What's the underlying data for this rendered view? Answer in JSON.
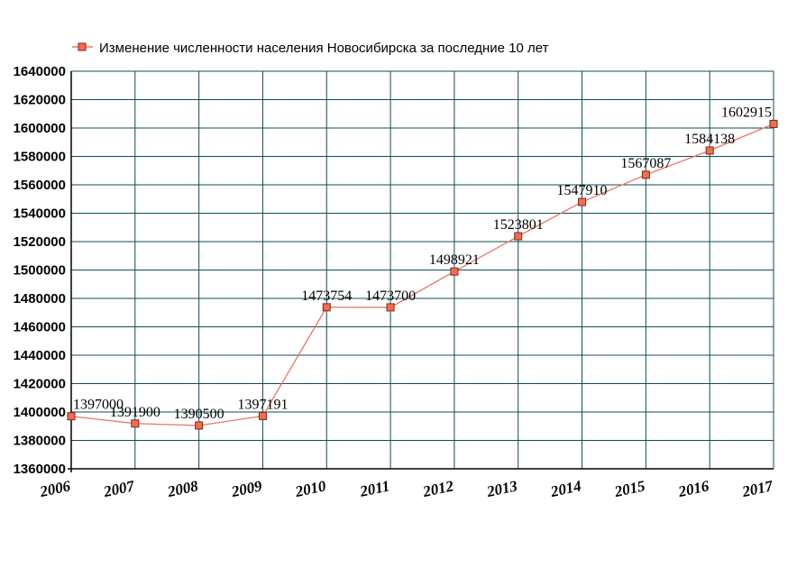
{
  "chart_data": {
    "type": "line",
    "legend": {
      "label": "Изменение численности населения Новосибирска за последние 10 лет",
      "placement": "top-left"
    },
    "categories": [
      "2006",
      "2007",
      "2008",
      "2009",
      "2010",
      "2011",
      "2012",
      "2013",
      "2014",
      "2015",
      "2016",
      "2017"
    ],
    "series": [
      {
        "name": "Изменение численности населения Новосибирска за последние 10 лет",
        "values": [
          1397000,
          1391900,
          1390500,
          1397191,
          1473754,
          1473700,
          1498921,
          1523801,
          1547910,
          1567087,
          1584138,
          1602915
        ],
        "data_labels": [
          "1397000",
          "1391900",
          "1390500",
          "1397191",
          "1473754",
          "1473700",
          "1498921",
          "1523801",
          "1547910",
          "1567087",
          "1584138",
          "1602915"
        ]
      }
    ],
    "y_ticks": [
      "1360000",
      "1380000",
      "1400000",
      "1420000",
      "1440000",
      "1460000",
      "1480000",
      "1500000",
      "1520000",
      "1540000",
      "1560000",
      "1580000",
      "1600000",
      "1620000",
      "1640000"
    ],
    "ylim": [
      1360000,
      1640000
    ],
    "grid": true,
    "colors": {
      "line": "#e8756a",
      "marker_fill": "#f26d4f",
      "marker_stroke": "#7a2a1a",
      "grid": "#0d4d5a",
      "axis": "#000000"
    }
  }
}
